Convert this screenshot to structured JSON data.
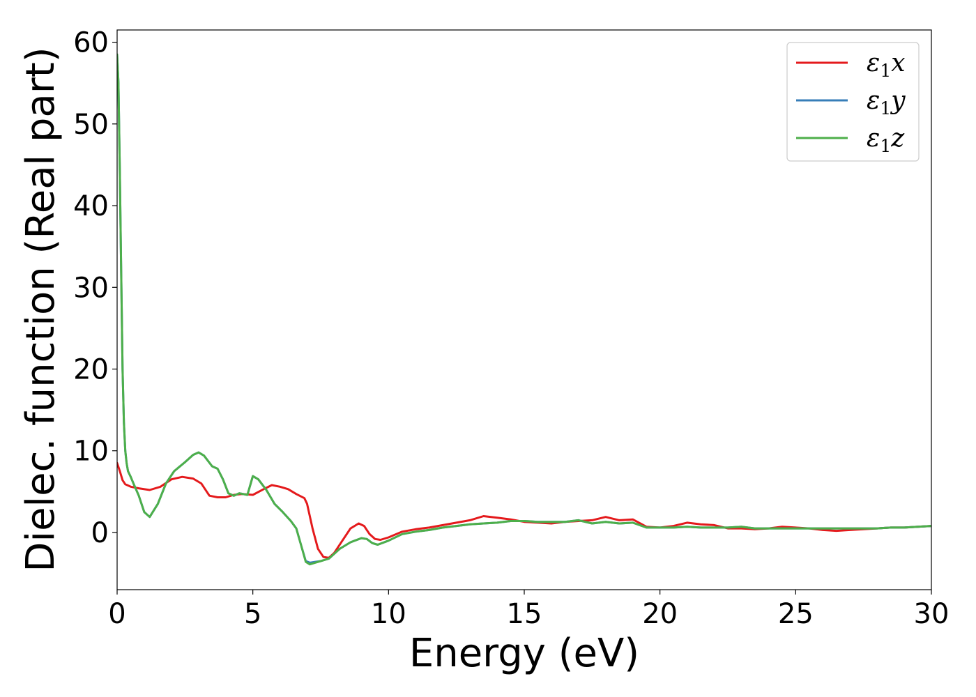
{
  "chart_data": {
    "type": "line",
    "title": "",
    "xlabel": "Energy (eV)",
    "ylabel": "Dielec. function (Real part)",
    "xlim": [
      0,
      30
    ],
    "ylim": [
      -7,
      61.5
    ],
    "xticks": [
      0,
      5,
      10,
      15,
      20,
      25,
      30
    ],
    "xtick_labels": [
      "0",
      "5",
      "10",
      "15",
      "20",
      "25",
      "30"
    ],
    "yticks": [
      0,
      10,
      20,
      30,
      40,
      50,
      60
    ],
    "ytick_labels": [
      "0",
      "10",
      "20",
      "30",
      "40",
      "50",
      "60"
    ],
    "grid": false,
    "legend_position": "top-right",
    "legend": [
      {
        "symbol": "ε",
        "sub": "1",
        "var": "x",
        "color": "#e41a1c"
      },
      {
        "symbol": "ε",
        "sub": "1",
        "var": "y",
        "color": "#377eb8"
      },
      {
        "symbol": "ε",
        "sub": "1",
        "var": "z",
        "color": "#4daf4a"
      }
    ],
    "series": [
      {
        "name": "ε1x",
        "color": "#e41a1c",
        "x": [
          0,
          0.1,
          0.2,
          0.3,
          0.5,
          0.8,
          1.2,
          1.6,
          2.0,
          2.4,
          2.8,
          3.1,
          3.4,
          3.7,
          4.0,
          4.3,
          4.6,
          5.0,
          5.4,
          5.7,
          6.0,
          6.3,
          6.6,
          6.9,
          7.0,
          7.2,
          7.4,
          7.6,
          7.8,
          8.0,
          8.3,
          8.6,
          8.9,
          9.1,
          9.3,
          9.5,
          9.7,
          10.0,
          10.5,
          11.0,
          11.5,
          12.0,
          12.5,
          13.0,
          13.5,
          14.0,
          14.5,
          15.0,
          15.5,
          16.0,
          16.5,
          17.0,
          17.5,
          18.0,
          18.5,
          19.0,
          19.5,
          20.0,
          20.5,
          21.0,
          21.5,
          22.0,
          22.5,
          23.0,
          23.5,
          24.0,
          24.5,
          25.0,
          25.5,
          26.0,
          26.5,
          27.0,
          27.5,
          28.0,
          28.5,
          29.0,
          29.5,
          30.0
        ],
        "y": [
          8.5,
          7.5,
          6.4,
          5.9,
          5.6,
          5.4,
          5.2,
          5.6,
          6.5,
          6.8,
          6.6,
          6.0,
          4.5,
          4.3,
          4.3,
          4.6,
          4.7,
          4.6,
          5.3,
          5.8,
          5.6,
          5.3,
          4.7,
          4.2,
          3.5,
          0.5,
          -2.0,
          -3.0,
          -3.1,
          -2.5,
          -1.0,
          0.5,
          1.1,
          0.8,
          -0.2,
          -0.8,
          -0.9,
          -0.6,
          0.1,
          0.4,
          0.6,
          0.9,
          1.2,
          1.5,
          2.0,
          1.8,
          1.6,
          1.3,
          1.2,
          1.1,
          1.3,
          1.4,
          1.5,
          1.9,
          1.5,
          1.6,
          0.7,
          0.6,
          0.8,
          1.2,
          1.0,
          0.9,
          0.5,
          0.5,
          0.4,
          0.5,
          0.7,
          0.6,
          0.5,
          0.3,
          0.2,
          0.3,
          0.4,
          0.5,
          0.6,
          0.6,
          0.7,
          0.8
        ]
      },
      {
        "name": "ε1y",
        "color": "#377eb8",
        "x": [
          0,
          0.05,
          0.1,
          0.15,
          0.2,
          0.25,
          0.3,
          0.35,
          0.4,
          0.5,
          0.6,
          0.8,
          1.0,
          1.2,
          1.5,
          1.8,
          2.1,
          2.5,
          2.8,
          3.0,
          3.2,
          3.5,
          3.7,
          3.9,
          4.1,
          4.3,
          4.5,
          4.8,
          5.0,
          5.2,
          5.5,
          5.8,
          6.1,
          6.4,
          6.6,
          6.8,
          6.95,
          7.1,
          7.3,
          7.5,
          7.8,
          8.2,
          8.6,
          9.0,
          9.2,
          9.4,
          9.6,
          10.0,
          10.5,
          11.0,
          11.5,
          12.0,
          12.5,
          13.0,
          13.5,
          14.0,
          14.5,
          15.0,
          15.5,
          16.0,
          16.5,
          17.0,
          17.5,
          18.0,
          18.5,
          19.0,
          19.5,
          20.0,
          20.5,
          21.0,
          21.5,
          22.0,
          22.5,
          23.0,
          23.5,
          24.0,
          24.5,
          25.0,
          25.5,
          26.0,
          26.5,
          27.0,
          27.5,
          28.0,
          28.5,
          29.0,
          29.5,
          30.0
        ],
        "y": [
          58.5,
          55.0,
          44.0,
          32.0,
          20.0,
          13.5,
          10.0,
          8.5,
          7.5,
          6.8,
          6.0,
          4.5,
          2.5,
          1.9,
          3.5,
          6.0,
          7.5,
          8.6,
          9.5,
          9.8,
          9.4,
          8.1,
          7.8,
          6.5,
          4.8,
          4.5,
          4.8,
          4.6,
          6.9,
          6.5,
          5.2,
          3.5,
          2.5,
          1.4,
          0.5,
          -1.8,
          -3.5,
          -3.7,
          -3.6,
          -3.5,
          -3.2,
          -2.0,
          -1.2,
          -0.7,
          -0.8,
          -1.3,
          -1.5,
          -1.0,
          -0.2,
          0.1,
          0.3,
          0.6,
          0.8,
          1.0,
          1.1,
          1.2,
          1.4,
          1.4,
          1.3,
          1.3,
          1.3,
          1.5,
          1.1,
          1.3,
          1.1,
          1.2,
          0.6,
          0.6,
          0.6,
          0.7,
          0.6,
          0.6,
          0.6,
          0.7,
          0.5,
          0.5,
          0.5,
          0.5,
          0.5,
          0.5,
          0.5,
          0.5,
          0.5,
          0.5,
          0.6,
          0.6,
          0.7,
          0.8
        ]
      },
      {
        "name": "ε1z",
        "color": "#4daf4a",
        "x": [
          0,
          0.05,
          0.1,
          0.15,
          0.2,
          0.25,
          0.3,
          0.35,
          0.4,
          0.5,
          0.6,
          0.8,
          1.0,
          1.2,
          1.5,
          1.8,
          2.1,
          2.5,
          2.8,
          3.0,
          3.2,
          3.5,
          3.7,
          3.9,
          4.1,
          4.3,
          4.5,
          4.8,
          5.0,
          5.2,
          5.5,
          5.8,
          6.1,
          6.4,
          6.6,
          6.8,
          6.95,
          7.1,
          7.3,
          7.5,
          7.8,
          8.2,
          8.6,
          9.0,
          9.2,
          9.4,
          9.6,
          10.0,
          10.5,
          11.0,
          11.5,
          12.0,
          12.5,
          13.0,
          13.5,
          14.0,
          14.5,
          15.0,
          15.5,
          16.0,
          16.5,
          17.0,
          17.5,
          18.0,
          18.5,
          19.0,
          19.5,
          20.0,
          20.5,
          21.0,
          21.5,
          22.0,
          22.5,
          23.0,
          23.5,
          24.0,
          24.5,
          25.0,
          25.5,
          26.0,
          26.5,
          27.0,
          27.5,
          28.0,
          28.5,
          29.0,
          29.5,
          30.0
        ],
        "y": [
          58.5,
          55.0,
          44.0,
          32.0,
          20.0,
          13.5,
          10.0,
          8.5,
          7.5,
          6.8,
          6.0,
          4.5,
          2.5,
          1.9,
          3.5,
          6.0,
          7.5,
          8.6,
          9.5,
          9.8,
          9.4,
          8.1,
          7.8,
          6.5,
          4.8,
          4.5,
          4.8,
          4.6,
          6.9,
          6.5,
          5.2,
          3.5,
          2.5,
          1.4,
          0.5,
          -1.8,
          -3.6,
          -3.9,
          -3.7,
          -3.5,
          -3.2,
          -2.0,
          -1.2,
          -0.7,
          -0.8,
          -1.3,
          -1.5,
          -1.0,
          -0.2,
          0.1,
          0.3,
          0.6,
          0.8,
          1.0,
          1.1,
          1.2,
          1.4,
          1.4,
          1.3,
          1.3,
          1.3,
          1.5,
          1.1,
          1.3,
          1.1,
          1.2,
          0.6,
          0.6,
          0.6,
          0.7,
          0.6,
          0.6,
          0.6,
          0.7,
          0.5,
          0.5,
          0.5,
          0.5,
          0.5,
          0.5,
          0.5,
          0.5,
          0.5,
          0.5,
          0.6,
          0.6,
          0.7,
          0.8
        ]
      }
    ]
  }
}
